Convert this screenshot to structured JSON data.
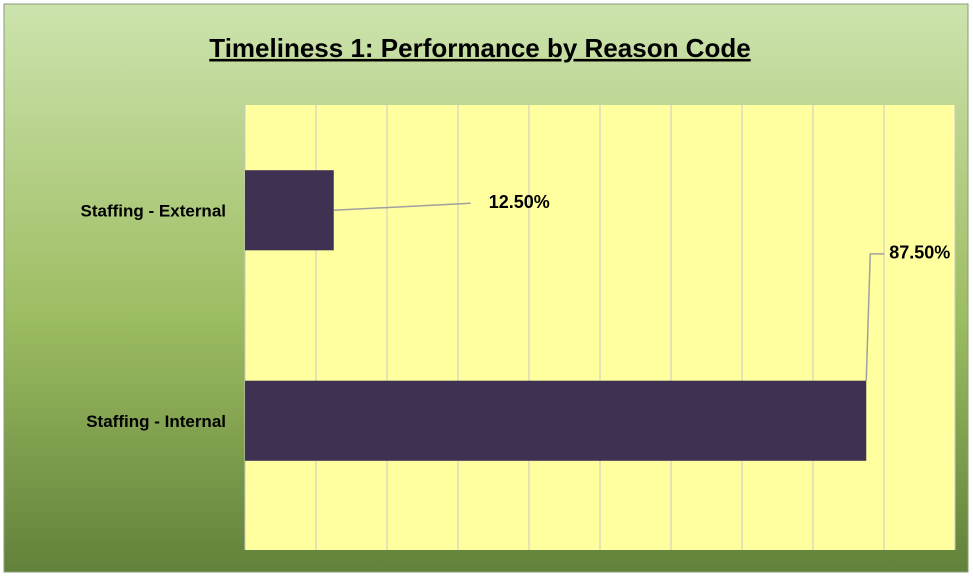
{
  "chart_data": {
    "type": "hbar",
    "title": "Timeliness 1: Performance by Reason Code",
    "categories": [
      "Staffing - External",
      "Staffing - Internal"
    ],
    "values": [
      12.5,
      87.5
    ],
    "value_labels": [
      "12.50%",
      "87.50%"
    ],
    "color": "#3f3152",
    "xlim": [
      0,
      100
    ],
    "xticks": [
      0,
      10,
      20,
      30,
      40,
      50,
      60,
      70,
      80,
      90,
      100
    ],
    "grid": true
  }
}
